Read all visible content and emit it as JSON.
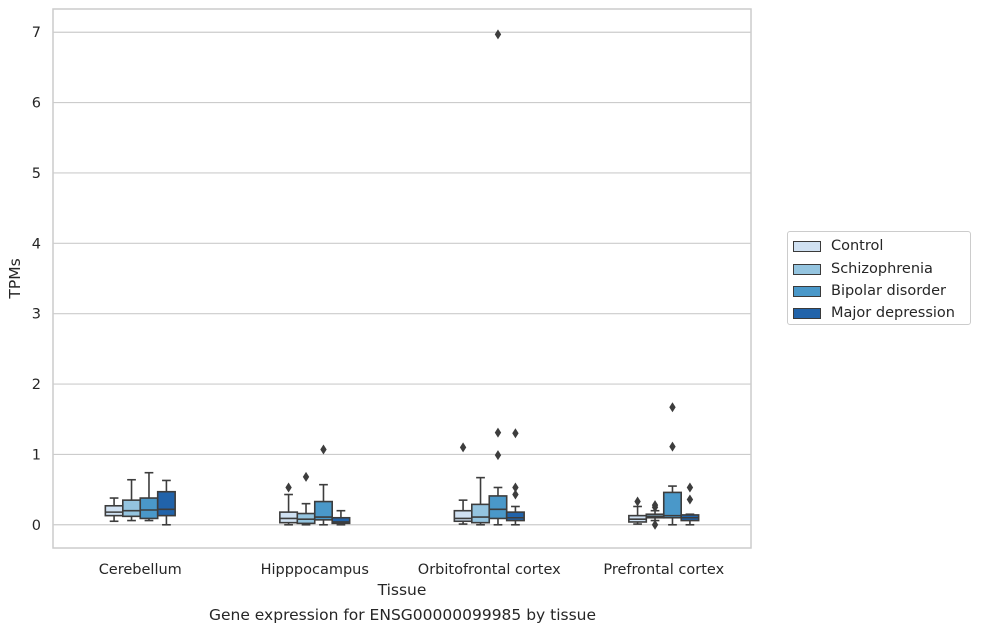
{
  "chart_data": {
    "type": "boxplot",
    "xlabel": "Tissue",
    "ylabel": "TPMs",
    "ylim": [
      -0.33,
      7.33
    ],
    "yticks": [
      0,
      1,
      2,
      3,
      4,
      5,
      6,
      7
    ],
    "grid": "horizontal",
    "legend_position": "right",
    "categories": [
      "Cerebellum",
      "Hipppocampus",
      "Orbitofrontal cortex",
      "Prefrontal cortex"
    ],
    "series": [
      {
        "name": "Control",
        "color": "#d0e1f2",
        "boxes": [
          {
            "whislo": 0.05,
            "q1": 0.13,
            "med": 0.18,
            "q3": 0.27,
            "whishi": 0.38,
            "fliers": []
          },
          {
            "whislo": 0.0,
            "q1": 0.03,
            "med": 0.09,
            "q3": 0.18,
            "whishi": 0.43,
            "fliers": [
              0.53
            ]
          },
          {
            "whislo": 0.01,
            "q1": 0.05,
            "med": 0.09,
            "q3": 0.2,
            "whishi": 0.35,
            "fliers": [
              1.1
            ]
          },
          {
            "whislo": 0.01,
            "q1": 0.04,
            "med": 0.08,
            "q3": 0.13,
            "whishi": 0.26,
            "fliers": [
              0.33
            ]
          }
        ]
      },
      {
        "name": "Schizophrenia",
        "color": "#94c4df",
        "boxes": [
          {
            "whislo": 0.06,
            "q1": 0.12,
            "med": 0.2,
            "q3": 0.35,
            "whishi": 0.64,
            "fliers": []
          },
          {
            "whislo": 0.0,
            "q1": 0.02,
            "med": 0.08,
            "q3": 0.16,
            "whishi": 0.3,
            "fliers": [
              0.68
            ]
          },
          {
            "whislo": 0.0,
            "q1": 0.03,
            "med": 0.11,
            "q3": 0.29,
            "whishi": 0.67,
            "fliers": []
          },
          {
            "whislo": 0.06,
            "q1": 0.1,
            "med": 0.12,
            "q3": 0.15,
            "whishi": 0.2,
            "fliers": [
              0.0,
              0.25,
              0.28
            ]
          }
        ]
      },
      {
        "name": "Bipolar disorder",
        "color": "#4a98c9",
        "boxes": [
          {
            "whislo": 0.06,
            "q1": 0.09,
            "med": 0.21,
            "q3": 0.38,
            "whishi": 0.74,
            "fliers": []
          },
          {
            "whislo": 0.0,
            "q1": 0.07,
            "med": 0.11,
            "q3": 0.33,
            "whishi": 0.57,
            "fliers": [
              1.07
            ]
          },
          {
            "whislo": 0.0,
            "q1": 0.09,
            "med": 0.22,
            "q3": 0.41,
            "whishi": 0.53,
            "fliers": [
              1.31,
              0.99,
              6.97
            ]
          },
          {
            "whislo": 0.0,
            "q1": 0.1,
            "med": 0.13,
            "q3": 0.46,
            "whishi": 0.55,
            "fliers": [
              1.67,
              1.11
            ]
          }
        ]
      },
      {
        "name": "Major depression",
        "color": "#2163aa",
        "boxes": [
          {
            "whislo": 0.0,
            "q1": 0.13,
            "med": 0.22,
            "q3": 0.47,
            "whishi": 0.63,
            "fliers": []
          },
          {
            "whislo": 0.0,
            "q1": 0.02,
            "med": 0.04,
            "q3": 0.1,
            "whishi": 0.2,
            "fliers": []
          },
          {
            "whislo": 0.0,
            "q1": 0.06,
            "med": 0.1,
            "q3": 0.18,
            "whishi": 0.26,
            "fliers": [
              1.3,
              0.53,
              0.43
            ]
          },
          {
            "whislo": 0.0,
            "q1": 0.06,
            "med": 0.1,
            "q3": 0.14,
            "whishi": 0.15,
            "fliers": [
              0.53,
              0.36
            ]
          }
        ]
      }
    ]
  },
  "caption": "Gene expression for ENSG00000099985 by tissue"
}
